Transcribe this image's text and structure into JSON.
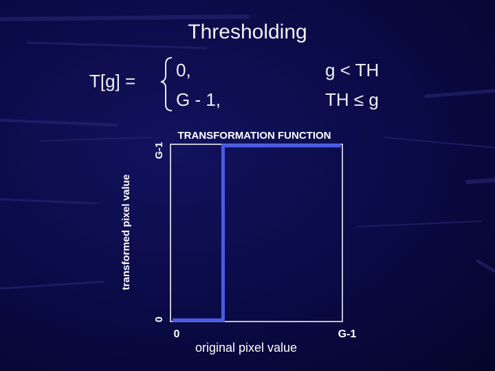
{
  "slide": {
    "title": "Thresholding"
  },
  "equation": {
    "lhs": "T[g] =",
    "cases": [
      {
        "value": "0,",
        "condition": "g < TH"
      },
      {
        "value": "G - 1,",
        "condition": "TH ≤ g"
      }
    ]
  },
  "chart_data": {
    "type": "line",
    "title": "TRANSFORMATION FUNCTION",
    "xlabel": "original pixel value",
    "ylabel": "transformed pixel value",
    "x_ticks": [
      "0",
      "G-1"
    ],
    "y_ticks": [
      "0",
      "G-1"
    ],
    "xlim": [
      0,
      1
    ],
    "ylim": [
      0,
      1
    ],
    "series": [
      {
        "x": [
          0,
          0.3,
          0.3,
          1
        ],
        "y": [
          0,
          0,
          1,
          1
        ]
      }
    ],
    "line_color": "#4a5ae8",
    "frame_color": "#ffffff"
  }
}
